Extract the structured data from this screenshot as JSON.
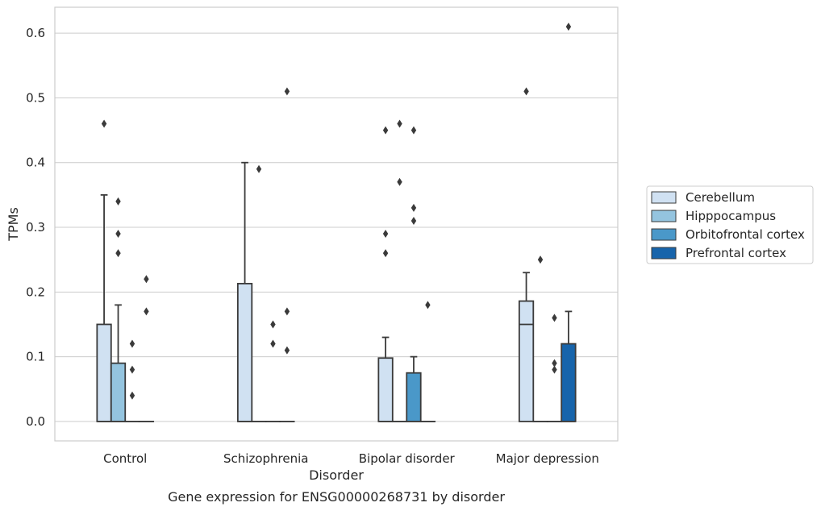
{
  "chart_data": {
    "type": "box",
    "caption": "Gene expression for ENSG00000268731 by disorder",
    "xlabel": "Disorder",
    "ylabel": "TPMs",
    "ylim": [
      -0.03,
      0.64
    ],
    "yticks": [
      0.0,
      0.1,
      0.2,
      0.3,
      0.4,
      0.5,
      0.6
    ],
    "ytick_labels": [
      "0.0",
      "0.1",
      "0.2",
      "0.3",
      "0.4",
      "0.5",
      "0.6"
    ],
    "grid": "horizontal",
    "legend_position": "right",
    "categories": [
      "Control",
      "Schizophrenia",
      "Bipolar disorder",
      "Major depression"
    ],
    "series": [
      {
        "name": "Cerebellum",
        "color": "#d0e1f2",
        "boxes": [
          {
            "q1": 0.0,
            "median": 0.0,
            "q3": 0.15,
            "whisker_low": 0.0,
            "whisker_high": 0.35,
            "outliers": [
              0.46
            ]
          },
          {
            "q1": 0.0,
            "median": 0.0,
            "q3": 0.213,
            "whisker_low": 0.0,
            "whisker_high": 0.4,
            "outliers": []
          },
          {
            "q1": 0.0,
            "median": 0.0,
            "q3": 0.098,
            "whisker_low": 0.0,
            "whisker_high": 0.13,
            "outliers": [
              0.26,
              0.29,
              0.45
            ]
          },
          {
            "q1": 0.0,
            "median": 0.15,
            "q3": 0.186,
            "whisker_low": 0.0,
            "whisker_high": 0.23,
            "outliers": [
              0.51
            ]
          }
        ]
      },
      {
        "name": "Hipppocampus",
        "color": "#94c4df",
        "boxes": [
          {
            "q1": 0.0,
            "median": 0.0,
            "q3": 0.09,
            "whisker_low": 0.0,
            "whisker_high": 0.18,
            "outliers": [
              0.26,
              0.29,
              0.34
            ]
          },
          {
            "q1": 0.0,
            "median": 0.0,
            "q3": 0.0,
            "whisker_low": 0.0,
            "whisker_high": 0.0,
            "outliers": [
              0.39
            ]
          },
          {
            "q1": 0.0,
            "median": 0.0,
            "q3": 0.0,
            "whisker_low": 0.0,
            "whisker_high": 0.0,
            "outliers": [
              0.37,
              0.46
            ]
          },
          {
            "q1": 0.0,
            "median": 0.0,
            "q3": 0.0,
            "whisker_low": 0.0,
            "whisker_high": 0.0,
            "outliers": [
              0.25
            ]
          }
        ]
      },
      {
        "name": "Orbitofrontal cortex",
        "color": "#4a98c9",
        "boxes": [
          {
            "q1": 0.0,
            "median": 0.0,
            "q3": 0.0,
            "whisker_low": 0.0,
            "whisker_high": 0.0,
            "outliers": [
              0.04,
              0.08,
              0.12
            ]
          },
          {
            "q1": 0.0,
            "median": 0.0,
            "q3": 0.0,
            "whisker_low": 0.0,
            "whisker_high": 0.0,
            "outliers": [
              0.12,
              0.15
            ]
          },
          {
            "q1": 0.0,
            "median": 0.0,
            "q3": 0.075,
            "whisker_low": 0.0,
            "whisker_high": 0.1,
            "outliers": [
              0.31,
              0.33,
              0.45
            ]
          },
          {
            "q1": 0.0,
            "median": 0.0,
            "q3": 0.0,
            "whisker_low": 0.0,
            "whisker_high": 0.0,
            "outliers": [
              0.08,
              0.09,
              0.16
            ]
          }
        ]
      },
      {
        "name": "Prefrontal cortex",
        "color": "#1764ab",
        "boxes": [
          {
            "q1": 0.0,
            "median": 0.0,
            "q3": 0.0,
            "whisker_low": 0.0,
            "whisker_high": 0.0,
            "outliers": [
              0.17,
              0.22
            ]
          },
          {
            "q1": 0.0,
            "median": 0.0,
            "q3": 0.0,
            "whisker_low": 0.0,
            "whisker_high": 0.0,
            "outliers": [
              0.11,
              0.17,
              0.51
            ]
          },
          {
            "q1": 0.0,
            "median": 0.0,
            "q3": 0.0,
            "whisker_low": 0.0,
            "whisker_high": 0.0,
            "outliers": [
              0.18
            ]
          },
          {
            "q1": 0.0,
            "median": 0.0,
            "q3": 0.12,
            "whisker_low": 0.0,
            "whisker_high": 0.17,
            "outliers": [
              0.61
            ]
          }
        ]
      }
    ]
  }
}
